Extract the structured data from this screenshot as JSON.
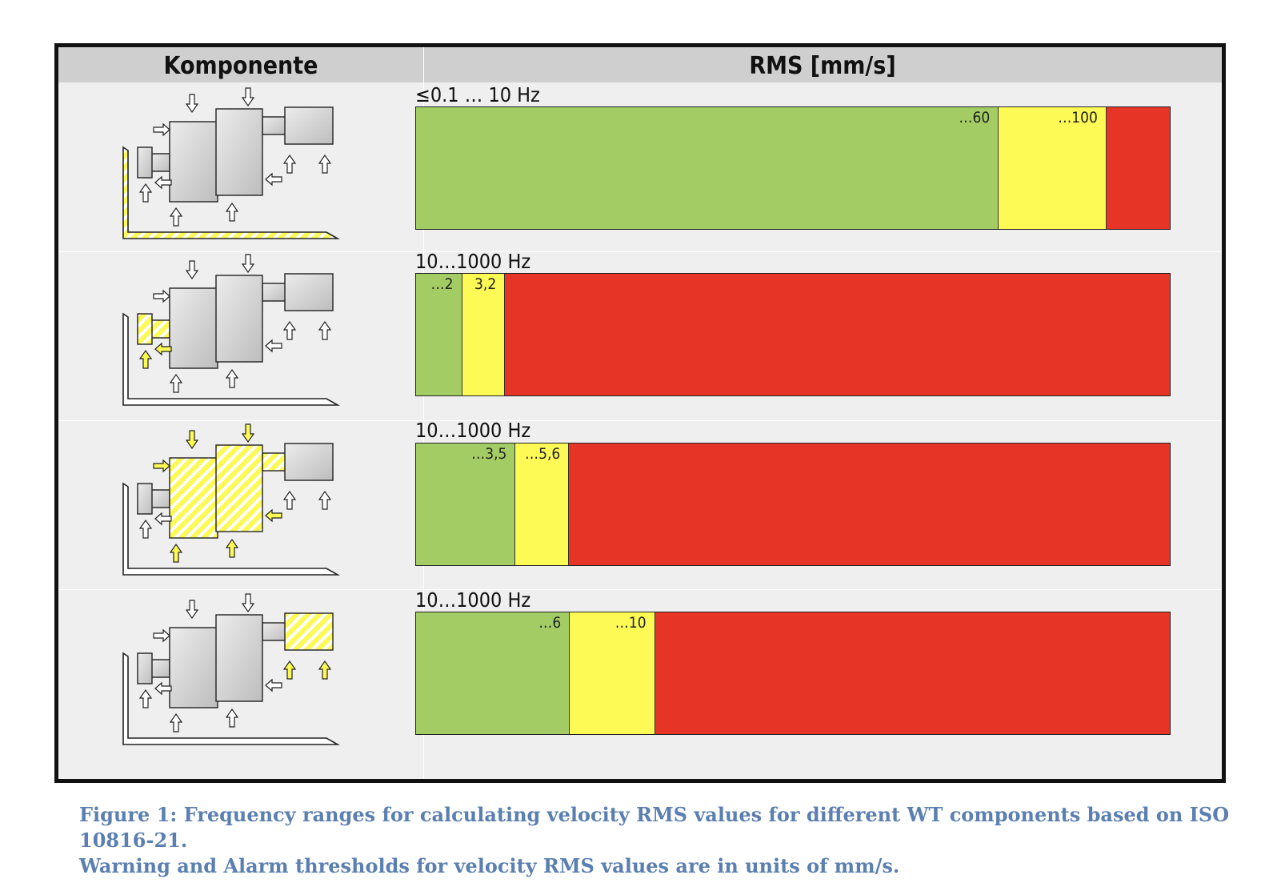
{
  "table": {
    "header_component": "Komponente",
    "header_rms": "RMS [mm/s]"
  },
  "colors": {
    "green": "#a3cd64",
    "yellow": "#fdf955",
    "red": "#e63526",
    "highlight": "#fdf955",
    "component_fill": "#d8d8d8"
  },
  "rows": [
    {
      "component": "foundation",
      "frequency_range": "≤0.1 … 10 Hz",
      "green_label": "…60",
      "yellow_label": "…100",
      "warning": 60,
      "alarm": 100
    },
    {
      "component": "main-bearing",
      "frequency_range": "10…1000 Hz",
      "green_label": "…2",
      "yellow_label": "3,2",
      "warning": 2,
      "alarm": 3.2
    },
    {
      "component": "gearbox",
      "frequency_range": "10…1000 Hz",
      "green_label": "…3,5",
      "yellow_label": "…5,6",
      "warning": 3.5,
      "alarm": 5.6
    },
    {
      "component": "generator",
      "frequency_range": "10…1000 Hz",
      "green_label": "…6",
      "yellow_label": "…10",
      "warning": 6,
      "alarm": 10
    }
  ],
  "zone_fractions": [
    {
      "green": 0.772,
      "yellow": 0.143
    },
    {
      "green": 0.06,
      "yellow": 0.057
    },
    {
      "green": 0.131,
      "yellow": 0.071
    },
    {
      "green": 0.203,
      "yellow": 0.113
    }
  ],
  "caption": {
    "line1": "Figure 1:  Frequency ranges for calculating velocity RMS values for different WT components based on ISO 10816-21.",
    "line2": "Warning and Alarm thresholds for velocity RMS values are in units of mm/s."
  }
}
